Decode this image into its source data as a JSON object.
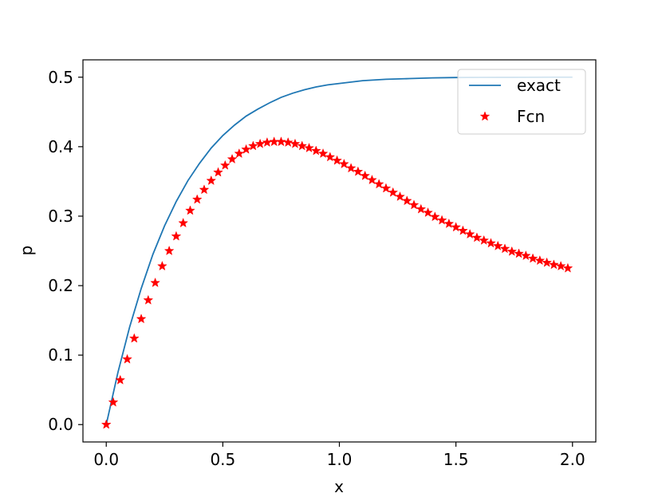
{
  "chart_data": {
    "type": "line",
    "xlabel": "x",
    "ylabel": "p",
    "xlim": [
      -0.1,
      2.1
    ],
    "ylim": [
      -0.025,
      0.525
    ],
    "x_ticks": [
      0.0,
      0.5,
      1.0,
      1.5,
      2.0
    ],
    "x_tick_labels": [
      "0.0",
      "0.5",
      "1.0",
      "1.5",
      "2.0"
    ],
    "y_ticks": [
      0.0,
      0.1,
      0.2,
      0.3,
      0.4,
      0.5
    ],
    "y_tick_labels": [
      "0.0",
      "0.1",
      "0.2",
      "0.3",
      "0.4",
      "0.5"
    ],
    "grid": false,
    "legend_position": "top-right",
    "series": [
      {
        "name": "exact",
        "style": "line",
        "color": "#1f77b4",
        "x": [
          0.0,
          0.05,
          0.1,
          0.15,
          0.2,
          0.25,
          0.3,
          0.35,
          0.4,
          0.45,
          0.5,
          0.55,
          0.6,
          0.65,
          0.7,
          0.75,
          0.8,
          0.85,
          0.9,
          0.95,
          1.0,
          1.1,
          1.2,
          1.3,
          1.4,
          1.5,
          1.6,
          1.7,
          1.8,
          1.9,
          2.0
        ],
        "y": [
          0.0,
          0.075,
          0.14,
          0.196,
          0.245,
          0.286,
          0.321,
          0.351,
          0.376,
          0.398,
          0.416,
          0.431,
          0.444,
          0.454,
          0.463,
          0.471,
          0.477,
          0.482,
          0.486,
          0.489,
          0.491,
          0.495,
          0.497,
          0.498,
          0.499,
          0.4995,
          0.4997,
          0.4998,
          0.4999,
          0.5,
          0.5
        ]
      },
      {
        "name": "Fcn",
        "style": "marker-star",
        "color": "#ff0000",
        "x": [
          0.0,
          0.03,
          0.06,
          0.09,
          0.12,
          0.15,
          0.18,
          0.21,
          0.24,
          0.27,
          0.3,
          0.33,
          0.36,
          0.39,
          0.42,
          0.45,
          0.48,
          0.51,
          0.54,
          0.57,
          0.6,
          0.63,
          0.66,
          0.69,
          0.72,
          0.75,
          0.78,
          0.81,
          0.84,
          0.87,
          0.9,
          0.93,
          0.96,
          0.99,
          1.02,
          1.05,
          1.08,
          1.11,
          1.14,
          1.17,
          1.2,
          1.23,
          1.26,
          1.29,
          1.32,
          1.35,
          1.38,
          1.41,
          1.44,
          1.47,
          1.5,
          1.53,
          1.56,
          1.59,
          1.62,
          1.65,
          1.68,
          1.71,
          1.74,
          1.77,
          1.8,
          1.83,
          1.86,
          1.89,
          1.92,
          1.95,
          1.98
        ],
        "y": [
          0.0,
          0.032,
          0.064,
          0.094,
          0.124,
          0.152,
          0.179,
          0.204,
          0.228,
          0.25,
          0.271,
          0.29,
          0.308,
          0.324,
          0.338,
          0.351,
          0.363,
          0.373,
          0.382,
          0.39,
          0.396,
          0.401,
          0.404,
          0.406,
          0.407,
          0.407,
          0.406,
          0.404,
          0.401,
          0.398,
          0.394,
          0.39,
          0.385,
          0.38,
          0.375,
          0.369,
          0.364,
          0.358,
          0.352,
          0.346,
          0.34,
          0.334,
          0.328,
          0.322,
          0.316,
          0.31,
          0.305,
          0.299,
          0.294,
          0.289,
          0.284,
          0.279,
          0.274,
          0.269,
          0.265,
          0.261,
          0.257,
          0.253,
          0.249,
          0.246,
          0.243,
          0.239,
          0.236,
          0.233,
          0.23,
          0.228,
          0.225
        ]
      }
    ]
  }
}
